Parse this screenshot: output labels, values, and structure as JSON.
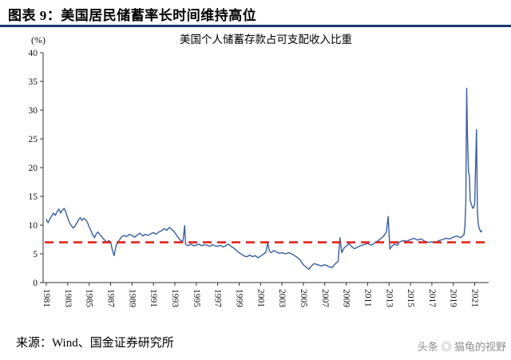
{
  "header": {
    "title": "图表 9：美国居民储蓄率长时间维持高位"
  },
  "footer": {
    "source": "来源：Wind、国金证券研究所",
    "watermark": "头条 ◎ 猫龟的视野"
  },
  "colors": {
    "header_rule": "#17386e",
    "axis": "#333333",
    "line": "#3a5f9f",
    "reference": "#e02420"
  },
  "chart_data": {
    "type": "line",
    "title": "美国个人储蓄存款占可支配收入比重",
    "ylabel": "(%)",
    "xlabel": "",
    "grid": false,
    "legend_position": "none",
    "ylim": [
      0,
      40
    ],
    "yticks": [
      0,
      5,
      10,
      15,
      20,
      25,
      30,
      35,
      40
    ],
    "xlim": [
      1980.7,
      2022.3
    ],
    "xticks": [
      1981,
      1983,
      1985,
      1987,
      1989,
      1991,
      1993,
      1995,
      1997,
      1999,
      2001,
      2003,
      2005,
      2007,
      2009,
      2011,
      2013,
      2015,
      2017,
      2019,
      2021
    ],
    "reference_line": {
      "value": 7.0,
      "color": "#e02420",
      "style": "dashed"
    },
    "series": [
      {
        "name": "美国个人储蓄存款占可支配收入比重",
        "color": "#3a5f9f",
        "points": [
          [
            1981.0,
            11.0
          ],
          [
            1981.17,
            10.4
          ],
          [
            1981.33,
            11.1
          ],
          [
            1981.5,
            11.6
          ],
          [
            1981.67,
            12.1
          ],
          [
            1981.83,
            11.7
          ],
          [
            1982.0,
            12.3
          ],
          [
            1982.17,
            12.8
          ],
          [
            1982.33,
            12.1
          ],
          [
            1982.5,
            12.6
          ],
          [
            1982.67,
            12.9
          ],
          [
            1982.83,
            12.2
          ],
          [
            1983.0,
            11.2
          ],
          [
            1983.17,
            10.4
          ],
          [
            1983.33,
            9.9
          ],
          [
            1983.5,
            9.5
          ],
          [
            1983.67,
            9.8
          ],
          [
            1983.83,
            10.3
          ],
          [
            1984.0,
            10.9
          ],
          [
            1984.17,
            11.3
          ],
          [
            1984.33,
            10.8
          ],
          [
            1984.5,
            11.2
          ],
          [
            1984.67,
            10.9
          ],
          [
            1984.83,
            10.5
          ],
          [
            1985.0,
            9.7
          ],
          [
            1985.17,
            9.0
          ],
          [
            1985.33,
            8.3
          ],
          [
            1985.5,
            7.8
          ],
          [
            1985.67,
            8.5
          ],
          [
            1985.83,
            8.8
          ],
          [
            1986.0,
            8.3
          ],
          [
            1986.17,
            8.0
          ],
          [
            1986.33,
            7.6
          ],
          [
            1986.5,
            7.3
          ],
          [
            1986.67,
            7.0
          ],
          [
            1986.83,
            7.3
          ],
          [
            1987.0,
            7.1
          ],
          [
            1987.17,
            5.6
          ],
          [
            1987.33,
            4.7
          ],
          [
            1987.5,
            6.3
          ],
          [
            1987.67,
            7.0
          ],
          [
            1987.83,
            7.4
          ],
          [
            1988.0,
            7.9
          ],
          [
            1988.25,
            8.2
          ],
          [
            1988.5,
            8.0
          ],
          [
            1988.75,
            8.4
          ],
          [
            1989.0,
            8.2
          ],
          [
            1989.25,
            7.9
          ],
          [
            1989.5,
            8.3
          ],
          [
            1989.75,
            8.6
          ],
          [
            1990.0,
            8.1
          ],
          [
            1990.25,
            8.4
          ],
          [
            1990.5,
            8.2
          ],
          [
            1990.75,
            8.5
          ],
          [
            1991.0,
            8.7
          ],
          [
            1991.25,
            8.4
          ],
          [
            1991.5,
            8.8
          ],
          [
            1991.75,
            9.0
          ],
          [
            1992.0,
            9.4
          ],
          [
            1992.25,
            9.1
          ],
          [
            1992.5,
            9.6
          ],
          [
            1992.75,
            9.2
          ],
          [
            1993.0,
            8.7
          ],
          [
            1993.25,
            8.0
          ],
          [
            1993.5,
            7.4
          ],
          [
            1993.75,
            7.1
          ],
          [
            1993.92,
            9.9
          ],
          [
            1994.0,
            6.7
          ],
          [
            1994.25,
            6.4
          ],
          [
            1994.5,
            6.7
          ],
          [
            1994.75,
            6.4
          ],
          [
            1995.0,
            6.5
          ],
          [
            1995.25,
            6.7
          ],
          [
            1995.5,
            6.4
          ],
          [
            1995.75,
            6.6
          ],
          [
            1996.0,
            6.5
          ],
          [
            1996.25,
            6.3
          ],
          [
            1996.5,
            6.6
          ],
          [
            1996.75,
            6.4
          ],
          [
            1997.0,
            6.3
          ],
          [
            1997.25,
            6.5
          ],
          [
            1997.5,
            6.2
          ],
          [
            1997.75,
            6.4
          ],
          [
            1998.0,
            6.7
          ],
          [
            1998.25,
            6.3
          ],
          [
            1998.5,
            6.0
          ],
          [
            1998.75,
            5.6
          ],
          [
            1999.0,
            5.2
          ],
          [
            1999.25,
            4.9
          ],
          [
            1999.5,
            4.6
          ],
          [
            1999.75,
            4.5
          ],
          [
            2000.0,
            4.8
          ],
          [
            2000.25,
            4.5
          ],
          [
            2000.5,
            4.7
          ],
          [
            2000.75,
            4.3
          ],
          [
            2001.0,
            4.6
          ],
          [
            2001.25,
            4.9
          ],
          [
            2001.5,
            5.3
          ],
          [
            2001.67,
            6.9
          ],
          [
            2001.83,
            5.5
          ],
          [
            2002.0,
            5.2
          ],
          [
            2002.25,
            5.6
          ],
          [
            2002.5,
            5.3
          ],
          [
            2002.75,
            5.1
          ],
          [
            2003.0,
            5.2
          ],
          [
            2003.33,
            5.0
          ],
          [
            2003.67,
            5.2
          ],
          [
            2004.0,
            4.9
          ],
          [
            2004.33,
            4.5
          ],
          [
            2004.67,
            4.0
          ],
          [
            2005.0,
            3.1
          ],
          [
            2005.25,
            2.7
          ],
          [
            2005.5,
            2.3
          ],
          [
            2005.75,
            2.9
          ],
          [
            2006.0,
            3.3
          ],
          [
            2006.33,
            3.1
          ],
          [
            2006.67,
            2.9
          ],
          [
            2007.0,
            3.1
          ],
          [
            2007.33,
            2.8
          ],
          [
            2007.67,
            2.6
          ],
          [
            2008.0,
            3.3
          ],
          [
            2008.25,
            3.7
          ],
          [
            2008.42,
            7.8
          ],
          [
            2008.58,
            5.2
          ],
          [
            2008.83,
            6.1
          ],
          [
            2009.0,
            6.3
          ],
          [
            2009.25,
            6.8
          ],
          [
            2009.5,
            6.3
          ],
          [
            2009.75,
            5.9
          ],
          [
            2010.0,
            6.1
          ],
          [
            2010.33,
            6.4
          ],
          [
            2010.67,
            6.6
          ],
          [
            2011.0,
            6.8
          ],
          [
            2011.33,
            6.5
          ],
          [
            2011.67,
            6.9
          ],
          [
            2012.0,
            7.3
          ],
          [
            2012.25,
            7.7
          ],
          [
            2012.5,
            8.1
          ],
          [
            2012.75,
            8.8
          ],
          [
            2012.92,
            11.5
          ],
          [
            2013.08,
            5.8
          ],
          [
            2013.25,
            6.3
          ],
          [
            2013.5,
            6.7
          ],
          [
            2013.75,
            6.5
          ],
          [
            2014.0,
            7.1
          ],
          [
            2014.33,
            7.3
          ],
          [
            2014.67,
            7.2
          ],
          [
            2015.0,
            7.5
          ],
          [
            2015.33,
            7.7
          ],
          [
            2015.67,
            7.4
          ],
          [
            2016.0,
            7.6
          ],
          [
            2016.33,
            7.2
          ],
          [
            2016.67,
            7.0
          ],
          [
            2017.0,
            7.1
          ],
          [
            2017.33,
            7.0
          ],
          [
            2017.67,
            7.3
          ],
          [
            2018.0,
            7.5
          ],
          [
            2018.33,
            7.7
          ],
          [
            2018.67,
            7.6
          ],
          [
            2019.0,
            7.9
          ],
          [
            2019.33,
            8.1
          ],
          [
            2019.67,
            7.8
          ],
          [
            2020.0,
            8.3
          ],
          [
            2020.08,
            9.6
          ],
          [
            2020.17,
            13.9
          ],
          [
            2020.25,
            33.8
          ],
          [
            2020.33,
            24.7
          ],
          [
            2020.42,
            19.2
          ],
          [
            2020.5,
            18.6
          ],
          [
            2020.58,
            14.3
          ],
          [
            2020.67,
            13.7
          ],
          [
            2020.75,
            13.3
          ],
          [
            2020.83,
            12.9
          ],
          [
            2020.92,
            13.2
          ],
          [
            2021.0,
            13.8
          ],
          [
            2021.08,
            19.9
          ],
          [
            2021.17,
            26.6
          ],
          [
            2021.25,
            12.6
          ],
          [
            2021.33,
            10.2
          ],
          [
            2021.42,
            9.4
          ],
          [
            2021.5,
            9.1
          ],
          [
            2021.58,
            8.8
          ],
          [
            2021.67,
            9.0
          ]
        ]
      }
    ]
  }
}
